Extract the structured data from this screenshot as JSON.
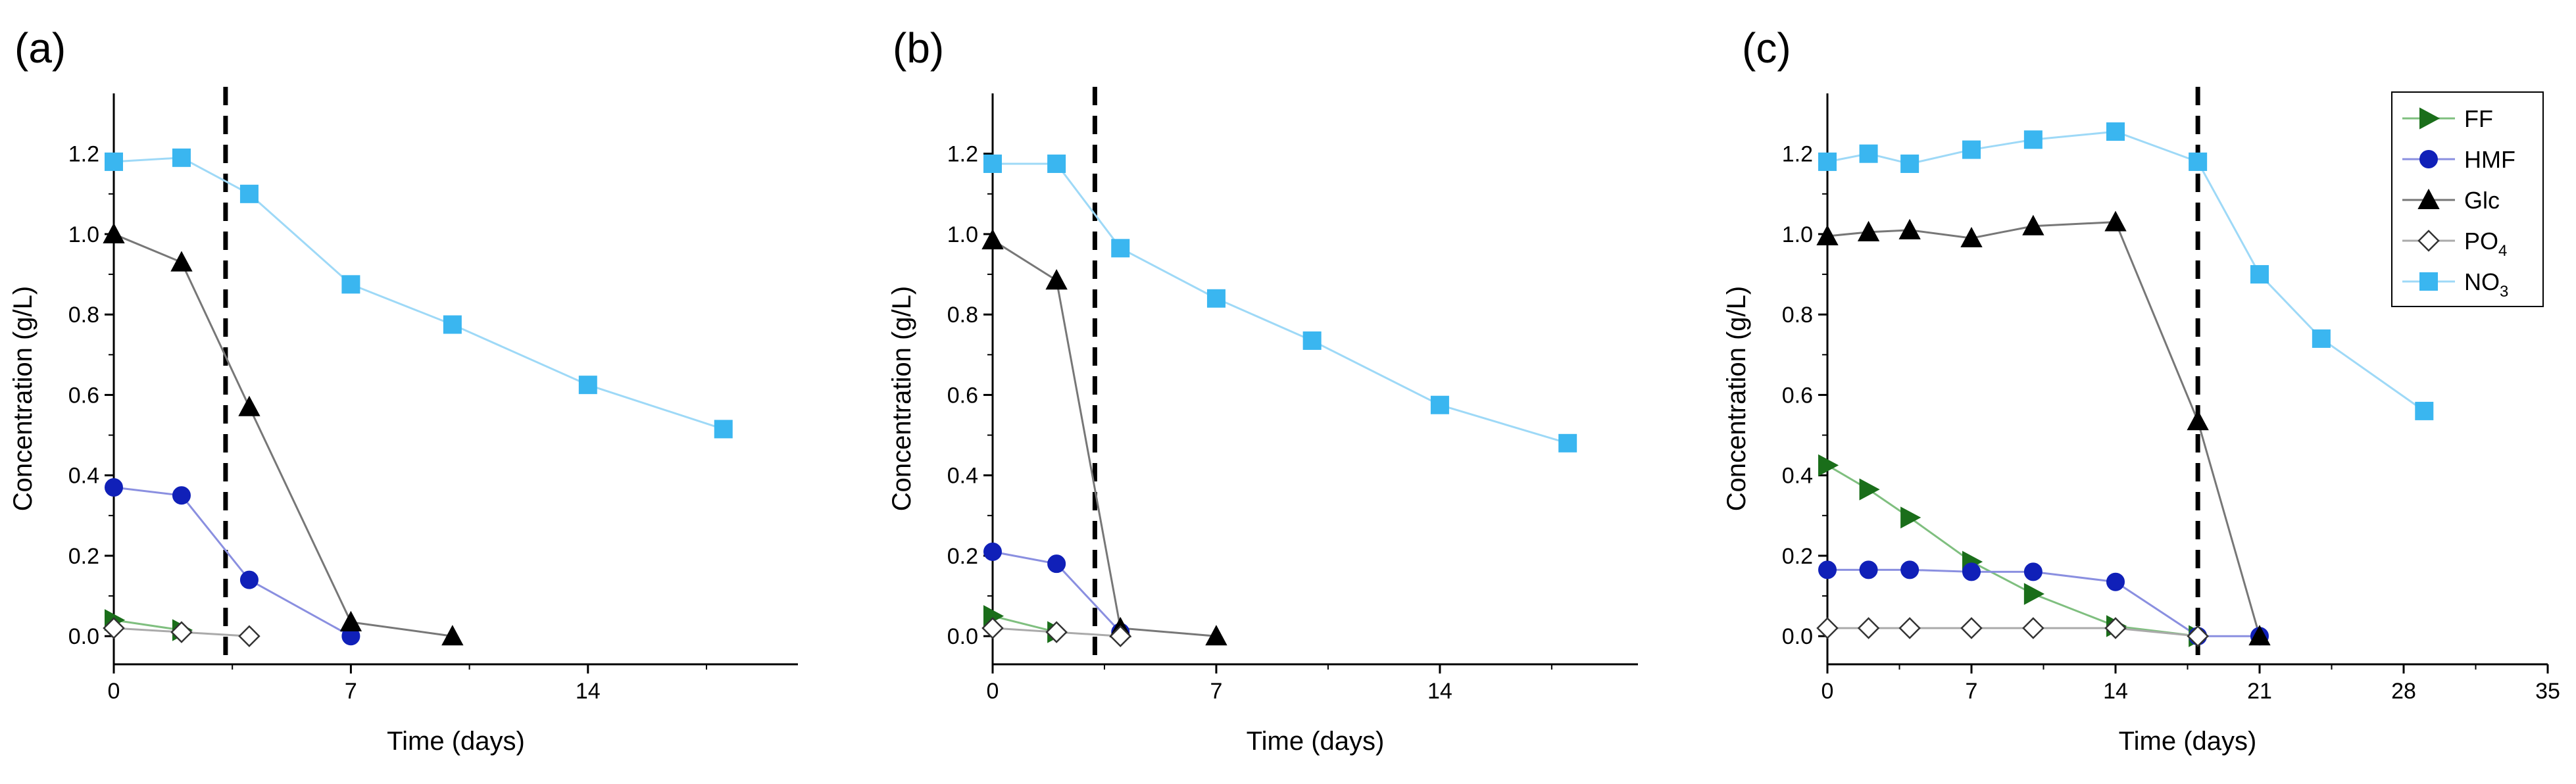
{
  "figure": {
    "type": "multi-panel line chart"
  },
  "legend": {
    "placement": "top-right of panel (c)",
    "entries": [
      {
        "key": "FF",
        "label": "FF",
        "sub": ""
      },
      {
        "key": "HMF",
        "label": "HMF",
        "sub": ""
      },
      {
        "key": "Glc",
        "label": "Glc",
        "sub": ""
      },
      {
        "key": "PO4",
        "label": "PO",
        "sub": "4"
      },
      {
        "key": "NO3",
        "label": "NO",
        "sub": "3"
      }
    ]
  },
  "series_style": {
    "FF": {
      "marker": "triangle-right",
      "color": "#1a6e1a",
      "line": "#7fbf7f",
      "hollow": false
    },
    "HMF": {
      "marker": "circle",
      "color": "#1020b8",
      "line": "#8a8fe0",
      "hollow": false
    },
    "Glc": {
      "marker": "triangle-up",
      "color": "#000000",
      "line": "#777777",
      "hollow": false
    },
    "PO4": {
      "marker": "diamond",
      "color": "#555555",
      "line": "#aaaaaa",
      "hollow": true
    },
    "NO3": {
      "marker": "square",
      "color": "#3ab6f0",
      "line": "#9ed9f7",
      "hollow": false
    }
  },
  "chart_data": [
    {
      "type": "line",
      "panel_label": "(a)",
      "xlabel": "Time (days)",
      "ylabel": "Concentration (g/L)",
      "xlim": [
        0,
        20.2
      ],
      "ylim": [
        -0.07,
        1.35
      ],
      "xticks": [
        0,
        7,
        14
      ],
      "yticks": [
        0.0,
        0.2,
        0.4,
        0.6,
        0.8,
        1.0,
        1.2
      ],
      "ytick_labels": [
        "0.0",
        "0.2",
        "0.4",
        "0.6",
        "0.8",
        "1.0",
        "1.2"
      ],
      "vline": 3.3,
      "series": [
        {
          "name": "FF",
          "x": [
            0,
            2
          ],
          "values": [
            0.04,
            0.015
          ]
        },
        {
          "name": "HMF",
          "x": [
            0,
            2,
            4,
            7
          ],
          "values": [
            0.37,
            0.35,
            0.14,
            0.0
          ]
        },
        {
          "name": "Glc",
          "x": [
            0,
            2,
            4,
            7,
            10
          ],
          "values": [
            1.0,
            0.93,
            0.57,
            0.035,
            0.0
          ]
        },
        {
          "name": "PO4",
          "x": [
            0,
            2,
            4
          ],
          "values": [
            0.02,
            0.01,
            0.0
          ]
        },
        {
          "name": "NO3",
          "x": [
            0,
            2,
            4,
            7,
            10,
            14,
            18
          ],
          "values": [
            1.18,
            1.19,
            1.1,
            0.875,
            0.775,
            0.625,
            0.515
          ]
        }
      ]
    },
    {
      "type": "line",
      "panel_label": "(b)",
      "xlabel": "Time (days)",
      "ylabel": "Concentration (g/L)",
      "xlim": [
        0,
        20.2
      ],
      "ylim": [
        -0.07,
        1.35
      ],
      "xticks": [
        0,
        7,
        14
      ],
      "yticks": [
        0.0,
        0.2,
        0.4,
        0.6,
        0.8,
        1.0,
        1.2
      ],
      "ytick_labels": [
        "0.0",
        "0.2",
        "0.4",
        "0.6",
        "0.8",
        "1.0",
        "1.2"
      ],
      "vline": 3.2,
      "series": [
        {
          "name": "FF",
          "x": [
            0,
            2
          ],
          "values": [
            0.05,
            0.01
          ]
        },
        {
          "name": "HMF",
          "x": [
            0,
            2,
            4
          ],
          "values": [
            0.21,
            0.18,
            0.01
          ]
        },
        {
          "name": "Glc",
          "x": [
            0,
            2,
            4,
            7
          ],
          "values": [
            0.985,
            0.885,
            0.02,
            0.0
          ]
        },
        {
          "name": "PO4",
          "x": [
            0,
            2,
            4
          ],
          "values": [
            0.02,
            0.01,
            0.0
          ]
        },
        {
          "name": "NO3",
          "x": [
            0,
            2,
            4,
            7,
            10,
            14,
            18
          ],
          "values": [
            1.175,
            1.175,
            0.965,
            0.84,
            0.735,
            0.575,
            0.48
          ]
        }
      ]
    },
    {
      "type": "line",
      "panel_label": "(c)",
      "xlabel": "Time (days)",
      "ylabel": "Concentration (g/L)",
      "xlim": [
        0,
        35
      ],
      "ylim": [
        -0.07,
        1.35
      ],
      "xticks": [
        0,
        7,
        14,
        21,
        28,
        35
      ],
      "yticks": [
        0.0,
        0.2,
        0.4,
        0.6,
        0.8,
        1.0,
        1.2
      ],
      "ytick_labels": [
        "0.0",
        "0.2",
        "0.4",
        "0.6",
        "0.8",
        "1.0",
        "1.2"
      ],
      "vline": 18,
      "series": [
        {
          "name": "FF",
          "x": [
            0,
            2,
            4,
            7,
            10,
            14,
            18
          ],
          "values": [
            0.425,
            0.365,
            0.295,
            0.185,
            0.105,
            0.025,
            0.0
          ]
        },
        {
          "name": "HMF",
          "x": [
            0,
            2,
            4,
            7,
            10,
            14,
            18,
            21
          ],
          "values": [
            0.165,
            0.165,
            0.165,
            0.16,
            0.16,
            0.135,
            0.0,
            0.0
          ]
        },
        {
          "name": "Glc",
          "x": [
            0,
            2,
            4,
            7,
            10,
            14,
            18,
            21
          ],
          "values": [
            0.995,
            1.005,
            1.01,
            0.99,
            1.02,
            1.03,
            0.535,
            0.0
          ]
        },
        {
          "name": "PO4",
          "x": [
            0,
            2,
            4,
            7,
            10,
            14,
            18
          ],
          "values": [
            0.02,
            0.02,
            0.02,
            0.02,
            0.02,
            0.02,
            0.0
          ]
        },
        {
          "name": "NO3",
          "x": [
            0,
            2,
            4,
            7,
            10,
            14,
            18,
            21,
            24,
            29
          ],
          "values": [
            1.18,
            1.2,
            1.175,
            1.21,
            1.235,
            1.255,
            1.18,
            0.9,
            0.74,
            0.56
          ]
        }
      ]
    }
  ]
}
